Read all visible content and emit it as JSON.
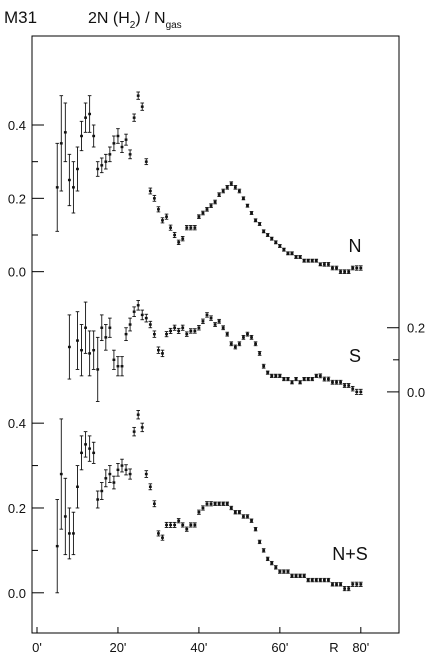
{
  "chart_data": {
    "type": "scatter",
    "title": "M31",
    "ylabel": {
      "prefix": "2N (H",
      "sub": "2",
      "mid": ") / N",
      "sub2": "gas"
    },
    "xlabel": "R",
    "xlim": [
      0,
      84
    ],
    "x_unit": "arcmin",
    "x_ticks": [
      "0'",
      "20'",
      "40'",
      "60'",
      "80'"
    ],
    "x_tick_values": [
      0,
      20,
      40,
      60,
      80
    ],
    "grid": false,
    "colors": {
      "axis": "#000000",
      "points": "#111111"
    },
    "panels": [
      {
        "name": "N",
        "yaxis_side": "left",
        "ylim": [
          -0.05,
          0.55
        ],
        "y_ticks": [
          "0.0",
          "0.2",
          "0.4"
        ],
        "y_tick_values": [
          0.0,
          0.2,
          0.4
        ],
        "points": [
          [
            5,
            0.23,
            0.12
          ],
          [
            6,
            0.35,
            0.13
          ],
          [
            7,
            0.38,
            0.08
          ],
          [
            8,
            0.25,
            0.07
          ],
          [
            9,
            0.23,
            0.07
          ],
          [
            10,
            0.28,
            0.06
          ],
          [
            11,
            0.37,
            0.04
          ],
          [
            12,
            0.42,
            0.04
          ],
          [
            13,
            0.43,
            0.05
          ],
          [
            14,
            0.37,
            0.03
          ],
          [
            15,
            0.28,
            0.02
          ],
          [
            16,
            0.29,
            0.02
          ],
          [
            17,
            0.3,
            0.02
          ],
          [
            18,
            0.32,
            0.02
          ],
          [
            19,
            0.35,
            0.02
          ],
          [
            20,
            0.37,
            0.02
          ],
          [
            21,
            0.34,
            0.015
          ],
          [
            22,
            0.36,
            0.015
          ],
          [
            23,
            0.32,
            0.012
          ],
          [
            24,
            0.42,
            0.01
          ],
          [
            25,
            0.48,
            0.01
          ],
          [
            26,
            0.45,
            0.01
          ],
          [
            27,
            0.3,
            0.008
          ],
          [
            28,
            0.22,
            0.008
          ],
          [
            29,
            0.2,
            0.008
          ],
          [
            30,
            0.17,
            0.007
          ],
          [
            31,
            0.14,
            0.007
          ],
          [
            32,
            0.15,
            0.007
          ],
          [
            33,
            0.12,
            0.007
          ],
          [
            34,
            0.1,
            0.007
          ],
          [
            35,
            0.08,
            0.006
          ],
          [
            36,
            0.09,
            0.006
          ],
          [
            37,
            0.12,
            0.006
          ],
          [
            38,
            0.12,
            0.006
          ],
          [
            39,
            0.12,
            0.006
          ],
          [
            40,
            0.15,
            0.005
          ],
          [
            41,
            0.16,
            0.005
          ],
          [
            42,
            0.17,
            0.005
          ],
          [
            43,
            0.18,
            0.005
          ],
          [
            44,
            0.19,
            0.005
          ],
          [
            45,
            0.21,
            0.005
          ],
          [
            46,
            0.22,
            0.005
          ],
          [
            47,
            0.23,
            0.005
          ],
          [
            48,
            0.24,
            0.005
          ],
          [
            49,
            0.23,
            0.005
          ],
          [
            50,
            0.22,
            0.005
          ],
          [
            51,
            0.2,
            0.004
          ],
          [
            52,
            0.18,
            0.004
          ],
          [
            53,
            0.16,
            0.004
          ],
          [
            54,
            0.14,
            0.004
          ],
          [
            55,
            0.13,
            0.004
          ],
          [
            56,
            0.11,
            0.004
          ],
          [
            57,
            0.1,
            0.004
          ],
          [
            58,
            0.09,
            0.004
          ],
          [
            59,
            0.08,
            0.004
          ],
          [
            60,
            0.07,
            0.004
          ],
          [
            61,
            0.06,
            0.004
          ],
          [
            62,
            0.05,
            0.004
          ],
          [
            63,
            0.05,
            0.004
          ],
          [
            64,
            0.04,
            0.004
          ],
          [
            65,
            0.04,
            0.004
          ],
          [
            66,
            0.03,
            0.004
          ],
          [
            67,
            0.03,
            0.004
          ],
          [
            68,
            0.03,
            0.004
          ],
          [
            69,
            0.03,
            0.004
          ],
          [
            70,
            0.02,
            0.004
          ],
          [
            71,
            0.02,
            0.005
          ],
          [
            72,
            0.02,
            0.005
          ],
          [
            73,
            0.01,
            0.005
          ],
          [
            74,
            0.01,
            0.005
          ],
          [
            75,
            0.0,
            0.005
          ],
          [
            76,
            0.0,
            0.005
          ],
          [
            77,
            0.0,
            0.005
          ],
          [
            78,
            0.01,
            0.005
          ],
          [
            79,
            0.01,
            0.006
          ],
          [
            80,
            0.01,
            0.006
          ]
        ]
      },
      {
        "name": "S",
        "yaxis_side": "right",
        "ylim": [
          -0.15,
          0.38
        ],
        "y_ticks": [
          "0.0",
          "0.2"
        ],
        "y_tick_values": [
          0.0,
          0.2
        ],
        "points": [
          [
            8,
            0.14,
            0.1
          ],
          [
            10,
            0.16,
            0.09
          ],
          [
            11,
            0.13,
            0.08
          ],
          [
            12,
            0.2,
            0.08
          ],
          [
            13,
            0.12,
            0.07
          ],
          [
            14,
            0.13,
            0.06
          ],
          [
            15,
            0.07,
            0.1
          ],
          [
            16,
            0.2,
            0.04
          ],
          [
            17,
            0.17,
            0.04
          ],
          [
            18,
            0.2,
            0.03
          ],
          [
            19,
            0.1,
            0.03
          ],
          [
            20,
            0.08,
            0.03
          ],
          [
            21,
            0.08,
            0.03
          ],
          [
            22,
            0.18,
            0.02
          ],
          [
            23,
            0.21,
            0.02
          ],
          [
            24,
            0.25,
            0.015
          ],
          [
            25,
            0.27,
            0.015
          ],
          [
            26,
            0.24,
            0.015
          ],
          [
            27,
            0.23,
            0.012
          ],
          [
            28,
            0.21,
            0.01
          ],
          [
            29,
            0.18,
            0.01
          ],
          [
            30,
            0.13,
            0.01
          ],
          [
            31,
            0.12,
            0.01
          ],
          [
            32,
            0.18,
            0.008
          ],
          [
            33,
            0.19,
            0.008
          ],
          [
            34,
            0.2,
            0.008
          ],
          [
            35,
            0.19,
            0.008
          ],
          [
            36,
            0.2,
            0.008
          ],
          [
            37,
            0.18,
            0.007
          ],
          [
            38,
            0.19,
            0.007
          ],
          [
            39,
            0.19,
            0.007
          ],
          [
            40,
            0.2,
            0.007
          ],
          [
            41,
            0.22,
            0.007
          ],
          [
            42,
            0.24,
            0.007
          ],
          [
            43,
            0.23,
            0.007
          ],
          [
            44,
            0.21,
            0.006
          ],
          [
            45,
            0.22,
            0.006
          ],
          [
            46,
            0.2,
            0.006
          ],
          [
            47,
            0.18,
            0.006
          ],
          [
            48,
            0.15,
            0.006
          ],
          [
            49,
            0.14,
            0.006
          ],
          [
            50,
            0.15,
            0.006
          ],
          [
            51,
            0.17,
            0.006
          ],
          [
            52,
            0.18,
            0.006
          ],
          [
            53,
            0.17,
            0.006
          ],
          [
            54,
            0.15,
            0.006
          ],
          [
            55,
            0.12,
            0.006
          ],
          [
            56,
            0.08,
            0.006
          ],
          [
            57,
            0.06,
            0.005
          ],
          [
            58,
            0.05,
            0.005
          ],
          [
            59,
            0.05,
            0.005
          ],
          [
            60,
            0.05,
            0.005
          ],
          [
            61,
            0.04,
            0.005
          ],
          [
            62,
            0.04,
            0.005
          ],
          [
            63,
            0.03,
            0.005
          ],
          [
            64,
            0.04,
            0.005
          ],
          [
            65,
            0.03,
            0.005
          ],
          [
            66,
            0.04,
            0.005
          ],
          [
            67,
            0.04,
            0.005
          ],
          [
            68,
            0.04,
            0.005
          ],
          [
            69,
            0.05,
            0.005
          ],
          [
            70,
            0.05,
            0.006
          ],
          [
            71,
            0.04,
            0.006
          ],
          [
            72,
            0.04,
            0.006
          ],
          [
            73,
            0.03,
            0.006
          ],
          [
            74,
            0.03,
            0.006
          ],
          [
            75,
            0.03,
            0.006
          ],
          [
            76,
            0.02,
            0.006
          ],
          [
            77,
            0.02,
            0.006
          ],
          [
            78,
            0.01,
            0.007
          ],
          [
            79,
            0.0,
            0.008
          ],
          [
            80,
            0.0,
            0.008
          ]
        ]
      },
      {
        "name": "N+S",
        "yaxis_side": "left",
        "ylim": [
          -0.05,
          0.49
        ],
        "y_ticks": [
          "0.0",
          "0.2",
          "0.4"
        ],
        "y_tick_values": [
          0.0,
          0.2,
          0.4
        ],
        "points": [
          [
            5,
            0.11,
            0.11
          ],
          [
            6,
            0.28,
            0.13
          ],
          [
            7,
            0.18,
            0.09
          ],
          [
            8,
            0.14,
            0.06
          ],
          [
            9,
            0.14,
            0.05
          ],
          [
            10,
            0.25,
            0.05
          ],
          [
            11,
            0.33,
            0.04
          ],
          [
            12,
            0.35,
            0.03
          ],
          [
            13,
            0.34,
            0.03
          ],
          [
            14,
            0.33,
            0.025
          ],
          [
            15,
            0.22,
            0.02
          ],
          [
            16,
            0.24,
            0.02
          ],
          [
            17,
            0.27,
            0.02
          ],
          [
            18,
            0.28,
            0.02
          ],
          [
            19,
            0.26,
            0.015
          ],
          [
            20,
            0.29,
            0.015
          ],
          [
            21,
            0.3,
            0.015
          ],
          [
            22,
            0.29,
            0.012
          ],
          [
            23,
            0.28,
            0.012
          ],
          [
            24,
            0.38,
            0.01
          ],
          [
            25,
            0.42,
            0.01
          ],
          [
            26,
            0.39,
            0.01
          ],
          [
            27,
            0.28,
            0.008
          ],
          [
            28,
            0.25,
            0.007
          ],
          [
            29,
            0.21,
            0.007
          ],
          [
            30,
            0.14,
            0.006
          ],
          [
            31,
            0.13,
            0.006
          ],
          [
            32,
            0.16,
            0.006
          ],
          [
            33,
            0.16,
            0.006
          ],
          [
            34,
            0.16,
            0.006
          ],
          [
            35,
            0.17,
            0.005
          ],
          [
            36,
            0.16,
            0.005
          ],
          [
            37,
            0.15,
            0.005
          ],
          [
            38,
            0.16,
            0.005
          ],
          [
            39,
            0.16,
            0.005
          ],
          [
            40,
            0.19,
            0.005
          ],
          [
            41,
            0.2,
            0.005
          ],
          [
            42,
            0.21,
            0.005
          ],
          [
            43,
            0.21,
            0.005
          ],
          [
            44,
            0.21,
            0.004
          ],
          [
            45,
            0.21,
            0.004
          ],
          [
            46,
            0.21,
            0.004
          ],
          [
            47,
            0.21,
            0.004
          ],
          [
            48,
            0.2,
            0.004
          ],
          [
            49,
            0.19,
            0.004
          ],
          [
            50,
            0.19,
            0.004
          ],
          [
            51,
            0.18,
            0.004
          ],
          [
            52,
            0.18,
            0.004
          ],
          [
            53,
            0.17,
            0.004
          ],
          [
            54,
            0.15,
            0.004
          ],
          [
            55,
            0.12,
            0.004
          ],
          [
            56,
            0.1,
            0.004
          ],
          [
            57,
            0.08,
            0.004
          ],
          [
            58,
            0.07,
            0.004
          ],
          [
            59,
            0.06,
            0.004
          ],
          [
            60,
            0.05,
            0.004
          ],
          [
            61,
            0.05,
            0.004
          ],
          [
            62,
            0.05,
            0.004
          ],
          [
            63,
            0.04,
            0.004
          ],
          [
            64,
            0.04,
            0.004
          ],
          [
            65,
            0.04,
            0.004
          ],
          [
            66,
            0.04,
            0.004
          ],
          [
            67,
            0.03,
            0.004
          ],
          [
            68,
            0.03,
            0.004
          ],
          [
            69,
            0.03,
            0.004
          ],
          [
            70,
            0.03,
            0.004
          ],
          [
            71,
            0.03,
            0.004
          ],
          [
            72,
            0.03,
            0.004
          ],
          [
            73,
            0.02,
            0.004
          ],
          [
            74,
            0.02,
            0.004
          ],
          [
            75,
            0.02,
            0.004
          ],
          [
            76,
            0.01,
            0.005
          ],
          [
            77,
            0.01,
            0.005
          ],
          [
            78,
            0.02,
            0.005
          ],
          [
            79,
            0.02,
            0.005
          ],
          [
            80,
            0.02,
            0.005
          ]
        ]
      }
    ]
  }
}
